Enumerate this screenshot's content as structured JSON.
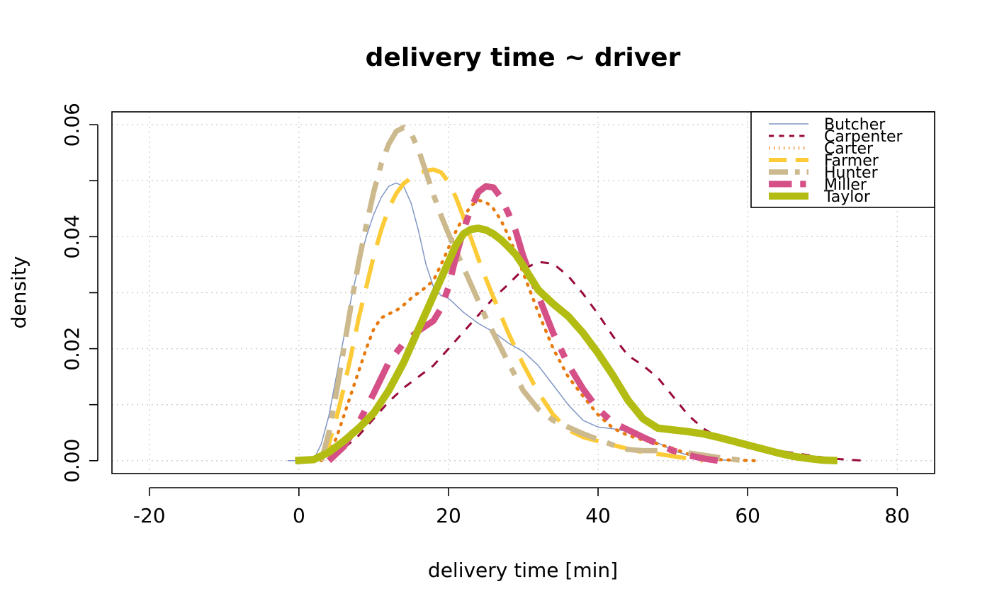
{
  "chart_data": {
    "type": "line",
    "title": "delivery time ~ driver",
    "xlabel": "delivery time [min]",
    "ylabel": "density",
    "xlim": [
      -25,
      85
    ],
    "ylim": [
      -0.0023,
      0.0623
    ],
    "x_ticks": [
      -20,
      0,
      20,
      40,
      60,
      80
    ],
    "x_tick_labels": [
      "-20",
      "0",
      "20",
      "40",
      "60",
      "80"
    ],
    "y_ticks": [
      0,
      0.01,
      0.02,
      0.03,
      0.04,
      0.05,
      0.06
    ],
    "y_tick_labels": [
      "0.00",
      "",
      "0.02",
      "",
      "0.04",
      "",
      "0.06"
    ],
    "grid": true,
    "legend_position": "top-right",
    "series": [
      {
        "name": "Butcher",
        "color": "#8096c4",
        "width": 1.5,
        "dash": "solid",
        "x": [
          -1.5,
          0,
          2,
          3,
          4,
          5,
          6,
          7,
          8,
          9,
          10,
          11,
          12,
          13,
          14,
          15,
          16,
          17,
          18,
          19,
          20,
          22,
          24,
          26,
          28,
          30,
          32,
          34,
          36,
          38,
          40,
          42,
          44,
          46,
          48,
          50,
          52,
          54,
          56,
          58
        ],
        "y": [
          0,
          0,
          0.0003,
          0.003,
          0.008,
          0.015,
          0.022,
          0.029,
          0.035,
          0.04,
          0.044,
          0.047,
          0.049,
          0.0496,
          0.049,
          0.046,
          0.041,
          0.035,
          0.031,
          0.0295,
          0.029,
          0.0265,
          0.0245,
          0.023,
          0.021,
          0.0195,
          0.017,
          0.0135,
          0.01,
          0.0072,
          0.006,
          0.0057,
          0.0052,
          0.0045,
          0.0032,
          0.0018,
          0.001,
          0.0005,
          0.0002,
          0
        ]
      },
      {
        "name": "Carpenter",
        "color": "#990a3c",
        "width": 3,
        "dash": "dashed",
        "x": [
          2,
          4,
          6,
          8,
          10,
          12,
          14,
          16,
          18,
          20,
          22,
          24,
          26,
          28,
          30,
          32,
          34,
          36,
          38,
          40,
          42,
          44,
          46,
          48,
          50,
          52,
          54,
          56,
          58,
          60,
          62,
          64,
          66,
          68,
          70,
          72,
          75.5
        ],
        "y": [
          0,
          0.0006,
          0.0022,
          0.0045,
          0.0075,
          0.0105,
          0.013,
          0.015,
          0.017,
          0.02,
          0.023,
          0.026,
          0.029,
          0.0315,
          0.0342,
          0.0355,
          0.0352,
          0.033,
          0.0298,
          0.0262,
          0.0222,
          0.0188,
          0.017,
          0.0148,
          0.0115,
          0.0082,
          0.0058,
          0.0042,
          0.0032,
          0.0026,
          0.0022,
          0.0018,
          0.0014,
          0.001,
          0.0006,
          0.0003,
          0
        ]
      },
      {
        "name": "Carter",
        "color": "#e87a0c",
        "width": 4.5,
        "dash": "dotted",
        "x": [
          3,
          4,
          5,
          6,
          7,
          8,
          9,
          10,
          11,
          12,
          13,
          14,
          15,
          16,
          17,
          18,
          19,
          20,
          21,
          22,
          23,
          24,
          25,
          26,
          27,
          28,
          29,
          30,
          32,
          34,
          36,
          38,
          40,
          42,
          44,
          46,
          48,
          50,
          52,
          54,
          56,
          58,
          61
        ],
        "y": [
          0,
          0.0015,
          0.004,
          0.008,
          0.012,
          0.016,
          0.02,
          0.0235,
          0.0255,
          0.0262,
          0.0268,
          0.0278,
          0.029,
          0.03,
          0.031,
          0.0322,
          0.035,
          0.038,
          0.041,
          0.0435,
          0.0455,
          0.0465,
          0.0462,
          0.045,
          0.043,
          0.0402,
          0.037,
          0.0335,
          0.0265,
          0.02,
          0.015,
          0.0115,
          0.0082,
          0.0058,
          0.0045,
          0.0037,
          0.003,
          0.0022,
          0.0012,
          0.0006,
          0.0002,
          0.0001,
          0
        ]
      },
      {
        "name": "Farmer",
        "color": "#fdcb37",
        "width": 6,
        "dash": "longdash",
        "x": [
          3,
          4,
          5,
          6,
          7,
          8,
          9,
          10,
          11,
          12,
          13,
          14,
          15,
          16,
          17,
          18,
          19,
          20,
          21,
          22,
          23,
          24,
          25,
          26,
          28,
          30,
          32,
          34,
          36,
          38,
          40,
          42,
          44,
          46,
          48,
          50,
          52,
          54
        ],
        "y": [
          0,
          0.003,
          0.0075,
          0.013,
          0.019,
          0.0255,
          0.031,
          0.0365,
          0.0412,
          0.045,
          0.0477,
          0.0495,
          0.0505,
          0.0513,
          0.0518,
          0.052,
          0.0515,
          0.0498,
          0.047,
          0.0435,
          0.0398,
          0.036,
          0.0325,
          0.0292,
          0.0228,
          0.0172,
          0.0122,
          0.0082,
          0.0055,
          0.0042,
          0.0035,
          0.0028,
          0.0021,
          0.0015,
          0.0012,
          0.0008,
          0.0004,
          0
        ]
      },
      {
        "name": "Hunter",
        "color": "#ccb98e",
        "width": 7.5,
        "dash": "dash-dot",
        "x": [
          3,
          4,
          5,
          6,
          7,
          8,
          9,
          10,
          11,
          12,
          13,
          14,
          15,
          16,
          17,
          18,
          19,
          20,
          21,
          22,
          23,
          24,
          25,
          26,
          28,
          30,
          32,
          34,
          36,
          38,
          40,
          42,
          44,
          46,
          48,
          50,
          52,
          54,
          56,
          59.5
        ],
        "y": [
          0,
          0.005,
          0.012,
          0.02,
          0.028,
          0.0355,
          0.042,
          0.048,
          0.053,
          0.0565,
          0.0588,
          0.0595,
          0.0585,
          0.0555,
          0.0515,
          0.0475,
          0.0438,
          0.0405,
          0.0375,
          0.0345,
          0.0315,
          0.0285,
          0.0255,
          0.0228,
          0.0175,
          0.0125,
          0.0092,
          0.0072,
          0.006,
          0.0048,
          0.0038,
          0.0028,
          0.002,
          0.0018,
          0.0018,
          0.0018,
          0.0014,
          0.001,
          0.0006,
          0
        ]
      },
      {
        "name": "Miller",
        "color": "#d55087",
        "width": 9,
        "dash": "dash-dot",
        "x": [
          4,
          6,
          8,
          10,
          12,
          14,
          16,
          18,
          19,
          20,
          21,
          22,
          23,
          24,
          25,
          26,
          27,
          28,
          29,
          30,
          32,
          34,
          36,
          38,
          40,
          42,
          44,
          46,
          48,
          50,
          52,
          54,
          56
        ],
        "y": [
          0,
          0.0025,
          0.0068,
          0.012,
          0.0175,
          0.021,
          0.0232,
          0.025,
          0.0272,
          0.031,
          0.0365,
          0.0412,
          0.045,
          0.048,
          0.049,
          0.0488,
          0.047,
          0.0442,
          0.041,
          0.0365,
          0.0295,
          0.0228,
          0.0172,
          0.0128,
          0.0092,
          0.0068,
          0.0055,
          0.0042,
          0.003,
          0.0018,
          0.001,
          0.0004,
          0
        ]
      },
      {
        "name": "Taylor",
        "color": "#b3bc12",
        "width": 10.5,
        "dash": "solid",
        "x": [
          -0.5,
          2,
          4,
          6,
          8,
          10,
          12,
          14,
          16,
          18,
          20,
          21,
          22,
          23,
          24,
          25,
          26,
          27,
          28,
          29,
          30,
          32,
          34,
          36,
          38,
          40,
          42,
          44,
          46,
          48,
          50,
          52,
          54,
          56,
          58,
          60,
          62,
          64,
          66,
          68,
          70,
          72
        ],
        "y": [
          0,
          0.0002,
          0.0015,
          0.0035,
          0.0058,
          0.0085,
          0.0125,
          0.0175,
          0.0235,
          0.0295,
          0.0355,
          0.0385,
          0.0405,
          0.0413,
          0.0415,
          0.0412,
          0.0405,
          0.0395,
          0.0382,
          0.0368,
          0.0348,
          0.0305,
          0.028,
          0.0258,
          0.0228,
          0.0192,
          0.0152,
          0.0108,
          0.0075,
          0.0058,
          0.0055,
          0.0052,
          0.0048,
          0.0042,
          0.0035,
          0.0028,
          0.0021,
          0.0014,
          0.0008,
          0.0004,
          0.0001,
          0
        ]
      }
    ]
  }
}
